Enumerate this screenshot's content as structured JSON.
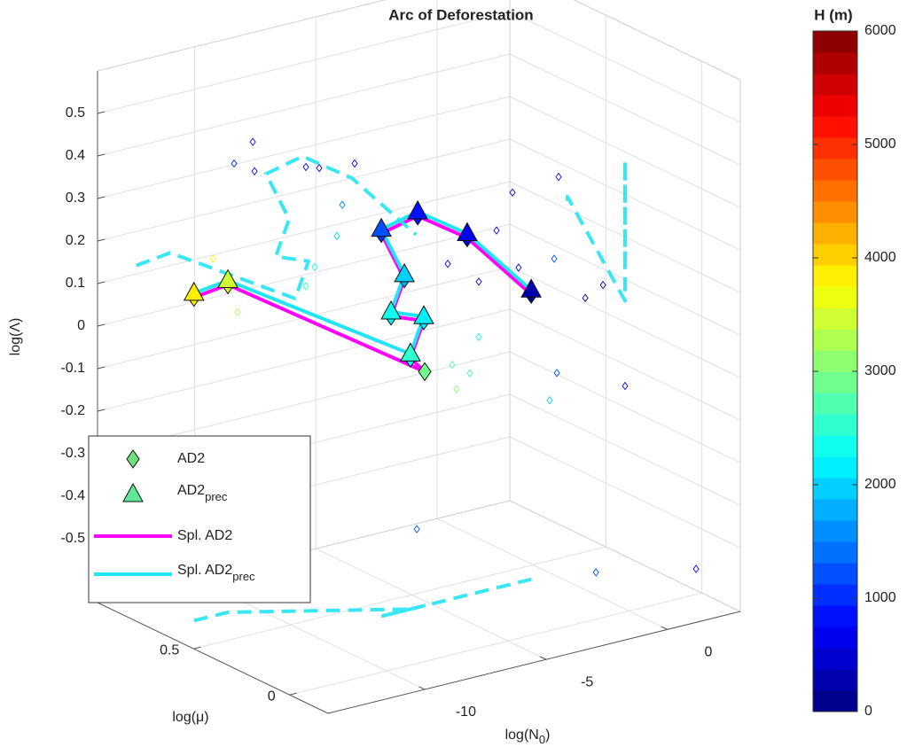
{
  "chart_data": {
    "type": "scatter3d",
    "title": "Arc of Deforestation",
    "xlabel": {
      "text": "log(N",
      "sub": "0",
      "end": ")"
    },
    "ylabel": "log(μ)",
    "zlabel": "log(Λ)",
    "xlim": [
      -14,
      3
    ],
    "xticks": [
      -10,
      -5,
      0
    ],
    "ylim": [
      -0.2,
      1.0
    ],
    "yticks": [
      0,
      0.5
    ],
    "zlim": [
      -0.65,
      0.6
    ],
    "zticks": [
      0.5,
      0.4,
      0.3,
      0.2,
      0.1,
      0,
      -0.1,
      -0.2,
      -0.3,
      -0.4,
      -0.5
    ],
    "grid": true,
    "legend": "southwest",
    "colorbar": {
      "label": "H (m)",
      "lim": [
        0,
        6000
      ],
      "ticks": [
        0,
        1000,
        2000,
        3000,
        4000,
        5000,
        6000
      ],
      "colormap": "jet",
      "levels": 32
    },
    "series": [
      {
        "name": "AD2",
        "marker": "diamond",
        "color": "#6ee07c",
        "x": [
          -12.4,
          -11.0,
          -5.26,
          -5.85,
          -5.3,
          -6.65,
          -6.1,
          -7.05,
          -5.55,
          -3.51,
          -0.87
        ],
        "y": [
          0.7,
          0.7,
          0.4,
          0.4,
          0.4,
          0.4,
          0.4,
          0.4,
          0.4,
          0.4,
          0.4
        ],
        "z": [
          0.11,
          0.12,
          -0.1,
          -0.06,
          0.02,
          0.05,
          0.13,
          0.25,
          0.27,
          0.19,
          0.02
        ],
        "values": [
          3800,
          3400,
          2900,
          2400,
          2100,
          2200,
          1800,
          1100,
          800,
          600,
          100
        ]
      },
      {
        "name": "AD2",
        "name_sub": "prec",
        "marker": "triangle",
        "color": "#5fe89a",
        "x": [
          -12.4,
          -11.0,
          -5.85,
          -5.3,
          -6.65,
          -6.1,
          -7.05,
          -5.55,
          -3.51,
          -0.87
        ],
        "y": [
          0.7,
          0.7,
          0.4,
          0.4,
          0.4,
          0.4,
          0.4,
          0.4,
          0.4,
          0.4
        ],
        "z": [
          0.12,
          0.13,
          -0.05,
          0.03,
          0.06,
          0.14,
          0.26,
          0.28,
          0.2,
          0.03
        ],
        "values": [
          3900,
          3500,
          2500,
          2200,
          2300,
          1900,
          1200,
          900,
          700,
          200
        ]
      },
      {
        "name": "Spl. AD2",
        "marker": "line",
        "color": "#ff00ff"
      },
      {
        "name": "Spl. AD2",
        "name_sub": "prec",
        "marker": "line",
        "color": "#22e4f2"
      }
    ],
    "points": {
      "x": [
        -13.12,
        -12.35,
        -12.28,
        -10.16,
        -9.61,
        -8.15,
        -8.66,
        -8.88,
        -9.8,
        -10.16,
        -1.64,
        -1.39,
        0.26,
        0.08,
        2.09,
        1.36,
        3.0,
        0.19,
        -0.11,
        -3.03,
        -4.13,
        -3.95,
        -3.4,
        -11.62,
        -10.6,
        -1.37,
        2.76,
        -7.17,
        -3.03,
        -2.3,
        -4.31
      ],
      "y": [
        0.4,
        0.4,
        0.4,
        0.4,
        0.4,
        0.4,
        0.4,
        0.4,
        0.4,
        0.4,
        0.4,
        0.4,
        0.4,
        0.4,
        0.4,
        0.4,
        0.4,
        0.4,
        0.4,
        0.4,
        0.4,
        0.4,
        0.4,
        0.7,
        0.7,
        0.0,
        0.0,
        0.2,
        0.4,
        0.4,
        0.4
      ],
      "z": [
        0.5,
        0.54,
        0.47,
        0.45,
        0.44,
        0.43,
        0.34,
        0.27,
        0.21,
        0.17,
        0.27,
        0.09,
        0.28,
        0.09,
        0.0,
        -0.02,
        -0.25,
        -0.18,
        -0.24,
        -0.05,
        -0.1,
        -0.16,
        -0.13,
        0.19,
        0.05,
        -0.54,
        -0.59,
        -0.4,
        0.08,
        0.19,
        0.14
      ],
      "values": [
        1000,
        800,
        600,
        600,
        500,
        700,
        1500,
        2000,
        2400,
        2600,
        500,
        400,
        800,
        1200,
        300,
        200,
        600,
        1200,
        2000,
        2300,
        2800,
        3000,
        2700,
        3700,
        3200,
        1200,
        600,
        1200,
        400,
        600,
        700
      ]
    }
  }
}
